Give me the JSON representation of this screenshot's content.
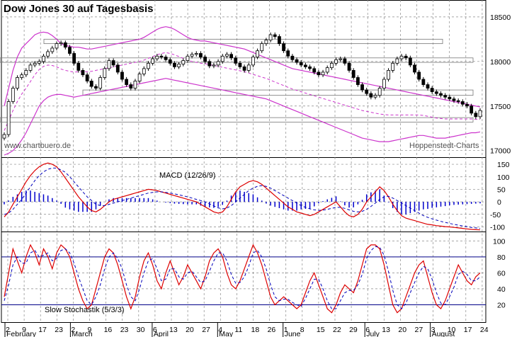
{
  "title": "Dow Jones 30 auf Tagesbasis",
  "watermark_left": "www.chartbuero.de",
  "watermark_right": "Hoppenstedt-Charts",
  "macd_label": "MACD (12/26/9)",
  "stoch_label": "Slow Stochastik (5/3/3)",
  "colors": {
    "bollinger": "#cc33cc",
    "macd_line": "#dd0000",
    "signal_line": "#0000bb",
    "histogram": "#0000cc",
    "stoch_k": "#dd0000",
    "stoch_d": "#0000bb",
    "grid": "#888888",
    "candle": "#000000"
  },
  "chart_data": [
    {
      "type": "candlestick",
      "title": "Dow Jones 30 auf Tagesbasis",
      "ylim": [
        16950,
        18650
      ],
      "yticks": [
        17000,
        17500,
        18000,
        18500
      ],
      "x_day_labels": [
        "2",
        "9",
        "17",
        "23",
        "2",
        "9",
        "16",
        "23",
        "30",
        "6",
        "13",
        "20",
        "27",
        "4",
        "11",
        "18",
        "26",
        "1",
        "8",
        "15",
        "22",
        "29",
        "6",
        "13",
        "20",
        "27",
        "3",
        "10",
        "17",
        "24"
      ],
      "x_month_labels": [
        "February",
        "March",
        "April",
        "May",
        "June",
        "July",
        "August"
      ],
      "support_resistance_bands": [
        [
          18200,
          18250
        ],
        [
          17990,
          18040
        ],
        [
          17620,
          17680
        ],
        [
          17320,
          17370
        ]
      ],
      "close": [
        17180,
        17550,
        17700,
        17820,
        17850,
        17900,
        17960,
        17980,
        18000,
        18060,
        18110,
        18150,
        18200,
        18210,
        18160,
        18090,
        17980,
        17900,
        17850,
        17780,
        17720,
        17700,
        17820,
        17920,
        18010,
        17960,
        17880,
        17800,
        17740,
        17700,
        17780,
        17860,
        17920,
        17980,
        18030,
        18060,
        18050,
        18020,
        17980,
        17940,
        17970,
        18010,
        18060,
        18080,
        18090,
        18050,
        18000,
        17950,
        17960,
        18000,
        18060,
        18080,
        18040,
        17980,
        17940,
        17900,
        17960,
        18050,
        18120,
        18200,
        18240,
        18300,
        18280,
        18200,
        18120,
        18060,
        18020,
        17990,
        17960,
        17940,
        17920,
        17880,
        17850,
        17880,
        17930,
        17980,
        18020,
        18030,
        17980,
        17900,
        17820,
        17740,
        17680,
        17640,
        17600,
        17620,
        17700,
        17800,
        17900,
        17980,
        18030,
        18060,
        18040,
        17960,
        17880,
        17800,
        17740,
        17700,
        17660,
        17640,
        17620,
        17600,
        17580,
        17560,
        17550,
        17520,
        17500,
        17420,
        17380,
        17450
      ],
      "bollinger_upper": [
        17500,
        17700,
        17900,
        18050,
        18150,
        18200,
        18250,
        18300,
        18320,
        18330,
        18320,
        18290,
        18250,
        18200,
        18180,
        18170,
        18160,
        18160,
        18150,
        18140,
        18140,
        18150,
        18160,
        18170,
        18180,
        18190,
        18200,
        18210,
        18220,
        18230,
        18240,
        18250,
        18270,
        18300,
        18330,
        18360,
        18380,
        18390,
        18380,
        18360,
        18330,
        18300,
        18270,
        18250,
        18240,
        18230,
        18230,
        18220,
        18210,
        18200,
        18190,
        18180,
        18170,
        18160,
        18150,
        18140,
        18120,
        18100,
        18080,
        18060,
        18040,
        18020,
        18000,
        17980,
        17960,
        17940,
        17920,
        17910,
        17900,
        17890,
        17880,
        17870,
        17860,
        17850,
        17840,
        17830,
        17820,
        17810,
        17800,
        17790,
        17780,
        17770,
        17760,
        17750,
        17740,
        17730,
        17720,
        17710,
        17700,
        17690,
        17680,
        17670,
        17660,
        17650,
        17640,
        17630,
        17620,
        17610,
        17600,
        17590,
        17580,
        17570,
        17560,
        17550,
        17540,
        17530,
        17520,
        17510,
        17500,
        17490
      ],
      "bollinger_lower": [
        16950,
        16970,
        17000,
        17050,
        17120,
        17200,
        17300,
        17400,
        17500,
        17560,
        17600,
        17620,
        17630,
        17630,
        17620,
        17610,
        17600,
        17610,
        17620,
        17630,
        17640,
        17650,
        17660,
        17670,
        17680,
        17690,
        17700,
        17710,
        17720,
        17730,
        17740,
        17750,
        17760,
        17770,
        17780,
        17790,
        17800,
        17810,
        17800,
        17790,
        17780,
        17770,
        17760,
        17750,
        17740,
        17730,
        17720,
        17710,
        17700,
        17690,
        17680,
        17670,
        17660,
        17650,
        17640,
        17630,
        17620,
        17610,
        17600,
        17590,
        17580,
        17560,
        17540,
        17520,
        17500,
        17480,
        17460,
        17440,
        17420,
        17400,
        17380,
        17360,
        17340,
        17320,
        17300,
        17280,
        17260,
        17240,
        17220,
        17200,
        17180,
        17160,
        17140,
        17130,
        17120,
        17110,
        17100,
        17100,
        17100,
        17110,
        17120,
        17130,
        17140,
        17150,
        17160,
        17170,
        17170,
        17160,
        17150,
        17140,
        17140,
        17140,
        17150,
        17160,
        17170,
        17180,
        17190,
        17200,
        17200,
        17210
      ]
    },
    {
      "type": "line",
      "title": "MACD (12/26/9)",
      "ylim": [
        -110,
        170
      ],
      "yticks": [
        -100,
        -50,
        0,
        50,
        100,
        150
      ],
      "series": [
        {
          "name": "MACD",
          "values": [
            -60,
            -40,
            -10,
            20,
            50,
            80,
            105,
            125,
            140,
            150,
            155,
            150,
            140,
            120,
            95,
            70,
            45,
            20,
            0,
            -20,
            -35,
            -40,
            -30,
            -15,
            0,
            10,
            15,
            20,
            25,
            30,
            35,
            40,
            45,
            50,
            48,
            45,
            40,
            35,
            30,
            25,
            20,
            15,
            10,
            5,
            0,
            -10,
            -20,
            -30,
            -40,
            -45,
            -40,
            -20,
            10,
            40,
            60,
            70,
            80,
            85,
            80,
            70,
            55,
            40,
            25,
            10,
            -5,
            -20,
            -30,
            -40,
            -45,
            -50,
            -55,
            -50,
            -40,
            -30,
            -20,
            -10,
            0,
            -20,
            -40,
            -55,
            -60,
            -50,
            -30,
            0,
            20,
            40,
            60,
            45,
            20,
            -10,
            -35,
            -55,
            -65,
            -70,
            -75,
            -80,
            -85,
            -90,
            -92,
            -95,
            -97,
            -99,
            -100,
            -102,
            -104,
            -106,
            -108,
            -110,
            -111,
            -112
          ]
        },
        {
          "name": "Signal",
          "values": [
            -50,
            -45,
            -30,
            -10,
            10,
            35,
            60,
            85,
            105,
            120,
            130,
            135,
            135,
            128,
            118,
            100,
            80,
            60,
            40,
            20,
            5,
            -10,
            -15,
            -15,
            -10,
            -5,
            0,
            5,
            10,
            15,
            20,
            25,
            30,
            35,
            38,
            40,
            40,
            38,
            35,
            32,
            28,
            24,
            20,
            15,
            10,
            5,
            0,
            -8,
            -16,
            -24,
            -28,
            -25,
            -15,
            0,
            15,
            30,
            45,
            55,
            62,
            65,
            62,
            55,
            45,
            35,
            25,
            15,
            5,
            -5,
            -15,
            -22,
            -28,
            -32,
            -34,
            -33,
            -30,
            -26,
            -22,
            -22,
            -26,
            -32,
            -38,
            -40,
            -38,
            -30,
            -18,
            -5,
            10,
            20,
            22,
            15,
            5,
            -5,
            -15,
            -25,
            -35,
            -45,
            -55,
            -62,
            -68,
            -73,
            -78,
            -82,
            -86,
            -90,
            -93,
            -96,
            -99,
            -102,
            -104,
            -106
          ]
        }
      ]
    },
    {
      "type": "line",
      "title": "Slow Stochastik (5/3/3)",
      "ylim": [
        0,
        110
      ],
      "yticks": [
        20,
        40,
        60,
        80,
        100
      ],
      "reference_lines": [
        20,
        80
      ],
      "series": [
        {
          "name": "%K",
          "values": [
            30,
            60,
            90,
            75,
            60,
            80,
            95,
            85,
            70,
            90,
            80,
            65,
            85,
            95,
            90,
            80,
            60,
            40,
            25,
            15,
            20,
            40,
            60,
            80,
            90,
            85,
            70,
            50,
            30,
            15,
            30,
            55,
            75,
            85,
            70,
            50,
            40,
            60,
            75,
            60,
            45,
            55,
            70,
            60,
            50,
            40,
            55,
            75,
            85,
            90,
            80,
            60,
            45,
            40,
            50,
            65,
            80,
            95,
            85,
            70,
            50,
            30,
            20,
            25,
            30,
            25,
            20,
            15,
            20,
            35,
            50,
            60,
            45,
            30,
            15,
            10,
            20,
            35,
            45,
            40,
            35,
            50,
            70,
            90,
            95,
            95,
            90,
            70,
            45,
            20,
            10,
            15,
            30,
            45,
            60,
            70,
            75,
            55,
            35,
            20,
            15,
            25,
            40,
            55,
            70,
            60,
            50,
            45,
            55,
            60
          ]
        },
        {
          "name": "%D",
          "values": [
            25,
            45,
            70,
            80,
            72,
            72,
            85,
            88,
            80,
            82,
            85,
            75,
            78,
            88,
            90,
            85,
            72,
            55,
            40,
            25,
            20,
            30,
            45,
            65,
            80,
            85,
            78,
            65,
            45,
            30,
            25,
            40,
            60,
            75,
            78,
            65,
            50,
            52,
            65,
            65,
            55,
            52,
            60,
            62,
            55,
            48,
            50,
            62,
            75,
            85,
            85,
            75,
            58,
            47,
            48,
            55,
            68,
            85,
            88,
            80,
            65,
            45,
            30,
            25,
            27,
            27,
            23,
            20,
            18,
            28,
            40,
            52,
            52,
            40,
            25,
            15,
            15,
            25,
            35,
            38,
            38,
            45,
            58,
            78,
            88,
            93,
            92,
            82,
            62,
            38,
            20,
            15,
            22,
            35,
            48,
            60,
            68,
            65,
            52,
            35,
            22,
            20,
            30,
            42,
            58,
            62,
            58,
            50,
            50,
            55
          ]
        }
      ]
    }
  ]
}
